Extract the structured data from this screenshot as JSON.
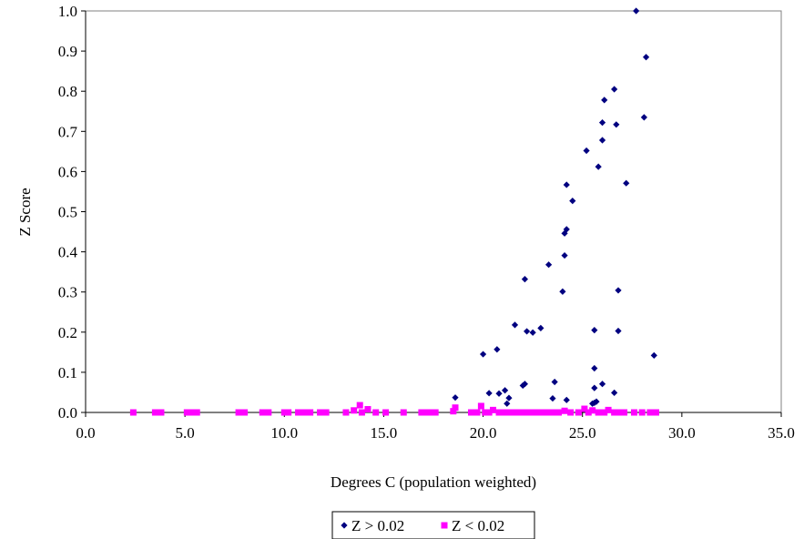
{
  "chart_data": {
    "type": "scatter",
    "title": "",
    "xlabel": "Degrees C (population weighted)",
    "ylabel": "Z Score",
    "xlim": [
      0,
      35
    ],
    "ylim": [
      0,
      1
    ],
    "x_ticks": [
      "0.0",
      "5.0",
      "10.0",
      "15.0",
      "20.0",
      "25.0",
      "30.0",
      "35.0"
    ],
    "y_ticks": [
      "0.0",
      "0.1",
      "0.2",
      "0.3",
      "0.4",
      "0.5",
      "0.6",
      "0.7",
      "0.8",
      "0.9",
      "1.0"
    ],
    "grid": false,
    "legend_position": "bottom",
    "series": [
      {
        "name": "Z > 0.02",
        "marker": "diamond",
        "color": "#000080",
        "points": [
          [
            18.6,
            0.037
          ],
          [
            20.0,
            0.145
          ],
          [
            20.3,
            0.048
          ],
          [
            20.7,
            0.157
          ],
          [
            20.8,
            0.047
          ],
          [
            21.1,
            0.055
          ],
          [
            21.2,
            0.022
          ],
          [
            21.3,
            0.036
          ],
          [
            21.6,
            0.218
          ],
          [
            22.0,
            0.067
          ],
          [
            22.1,
            0.071
          ],
          [
            22.1,
            0.332
          ],
          [
            22.2,
            0.202
          ],
          [
            22.5,
            0.199
          ],
          [
            22.9,
            0.21
          ],
          [
            23.3,
            0.368
          ],
          [
            23.5,
            0.035
          ],
          [
            23.6,
            0.076
          ],
          [
            24.0,
            0.301
          ],
          [
            24.1,
            0.391
          ],
          [
            24.1,
            0.446
          ],
          [
            24.2,
            0.456
          ],
          [
            24.2,
            0.567
          ],
          [
            24.2,
            0.031
          ],
          [
            24.5,
            0.527
          ],
          [
            25.2,
            0.652
          ],
          [
            25.5,
            0.022
          ],
          [
            25.6,
            0.024
          ],
          [
            25.6,
            0.061
          ],
          [
            25.6,
            0.11
          ],
          [
            25.6,
            0.205
          ],
          [
            25.7,
            0.027
          ],
          [
            25.8,
            0.612
          ],
          [
            26.0,
            0.071
          ],
          [
            26.0,
            0.678
          ],
          [
            26.0,
            0.722
          ],
          [
            26.1,
            0.778
          ],
          [
            26.6,
            0.805
          ],
          [
            26.6,
            0.049
          ],
          [
            26.7,
            0.717
          ],
          [
            26.8,
            0.304
          ],
          [
            26.8,
            0.203
          ],
          [
            27.2,
            0.571
          ],
          [
            27.7,
            1.0
          ],
          [
            28.1,
            0.735
          ],
          [
            28.2,
            0.885
          ],
          [
            28.6,
            0.142
          ]
        ]
      },
      {
        "name": "Z < 0.02",
        "marker": "square",
        "color": "#ff00ff",
        "points": [
          [
            2.4,
            0
          ],
          [
            3.5,
            0
          ],
          [
            3.8,
            0
          ],
          [
            5.1,
            0
          ],
          [
            5.3,
            0
          ],
          [
            5.6,
            0
          ],
          [
            7.7,
            0
          ],
          [
            8.0,
            0
          ],
          [
            8.9,
            0
          ],
          [
            9.2,
            0
          ],
          [
            10.0,
            0
          ],
          [
            10.2,
            0
          ],
          [
            10.7,
            0
          ],
          [
            11.0,
            0
          ],
          [
            11.3,
            0
          ],
          [
            11.8,
            0
          ],
          [
            12.1,
            0
          ],
          [
            13.1,
            0
          ],
          [
            13.5,
            0.005
          ],
          [
            13.8,
            0.018
          ],
          [
            13.9,
            0
          ],
          [
            14.2,
            0.008
          ],
          [
            14.6,
            0
          ],
          [
            15.1,
            0
          ],
          [
            16.0,
            0
          ],
          [
            16.9,
            0
          ],
          [
            17.1,
            0
          ],
          [
            17.3,
            0
          ],
          [
            17.6,
            0
          ],
          [
            18.5,
            0.003
          ],
          [
            18.6,
            0.012
          ],
          [
            19.4,
            0
          ],
          [
            19.7,
            0
          ],
          [
            19.9,
            0.016
          ],
          [
            20.1,
            0
          ],
          [
            20.3,
            0
          ],
          [
            20.5,
            0.006
          ],
          [
            20.8,
            0
          ],
          [
            21.1,
            0
          ],
          [
            21.4,
            0
          ],
          [
            21.7,
            0
          ],
          [
            22.0,
            0
          ],
          [
            22.3,
            0
          ],
          [
            22.6,
            0
          ],
          [
            22.9,
            0
          ],
          [
            23.2,
            0
          ],
          [
            23.5,
            0
          ],
          [
            23.8,
            0
          ],
          [
            24.1,
            0.004
          ],
          [
            24.4,
            0
          ],
          [
            24.8,
            0
          ],
          [
            25.1,
            0.009
          ],
          [
            25.3,
            0
          ],
          [
            25.5,
            0.005
          ],
          [
            25.8,
            0
          ],
          [
            26.1,
            0
          ],
          [
            26.3,
            0.006
          ],
          [
            26.6,
            0
          ],
          [
            26.9,
            0
          ],
          [
            27.1,
            0
          ],
          [
            27.6,
            0
          ],
          [
            28.0,
            0
          ],
          [
            28.4,
            0
          ],
          [
            28.7,
            0
          ]
        ]
      }
    ]
  }
}
